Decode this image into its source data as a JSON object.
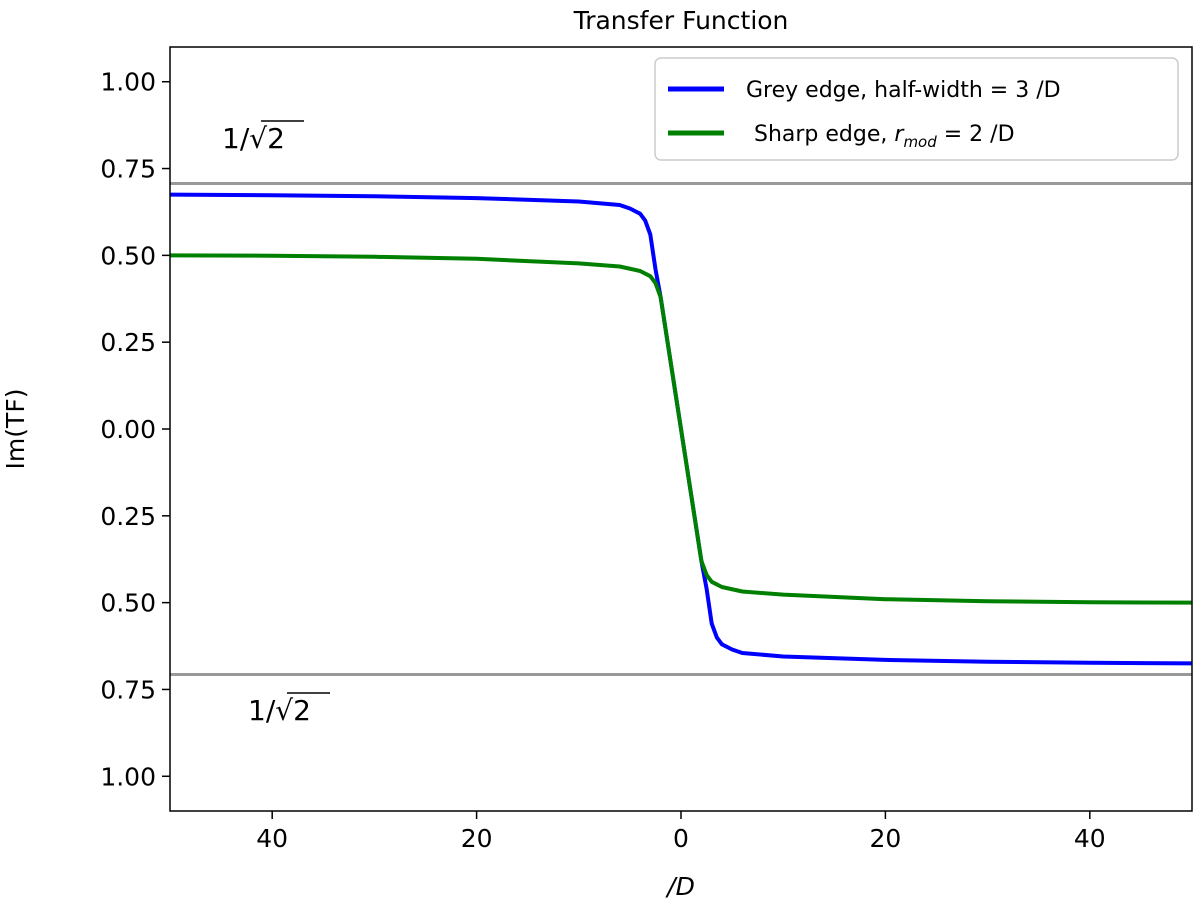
{
  "chart_data": {
    "type": "line",
    "title": "Transfer Function",
    "xlabel": "/D",
    "ylabel": "Im(TF)",
    "xlim": [
      -50,
      50
    ],
    "ylim": [
      -1.1,
      1.1
    ],
    "xticks": [
      -40,
      -20,
      0,
      20,
      40
    ],
    "xtick_labels": [
      "40",
      "20",
      "0",
      "20",
      "40"
    ],
    "yticks": [
      1.0,
      0.75,
      0.5,
      0.25,
      0.0,
      -0.25,
      -0.5,
      -0.75,
      -1.0
    ],
    "ytick_labels": [
      "1.00",
      "0.75",
      "0.50",
      "0.25",
      "0.00",
      "0.25",
      "0.50",
      "0.75",
      "1.00"
    ],
    "grid": false,
    "legend_position": "top-right",
    "reference_lines": [
      {
        "y": 0.7071,
        "label": "1/√2",
        "color": "#999999"
      },
      {
        "y": -0.7071,
        "label": "1/√2",
        "color": "#999999"
      }
    ],
    "series": [
      {
        "name": "Grey edge, half-width = 3  /D",
        "color": "#0000ff",
        "x": [
          -50,
          -40,
          -30,
          -20,
          -10,
          -6,
          -5,
          -4,
          -3.5,
          -3,
          -2.5,
          -2,
          -1,
          0,
          1,
          2,
          2.5,
          3,
          3.5,
          4,
          5,
          6,
          10,
          20,
          30,
          40,
          50
        ],
        "y": [
          0.675,
          0.673,
          0.67,
          0.665,
          0.655,
          0.645,
          0.635,
          0.62,
          0.6,
          0.56,
          0.46,
          0.38,
          0.19,
          0.0,
          -0.19,
          -0.38,
          -0.46,
          -0.56,
          -0.6,
          -0.62,
          -0.635,
          -0.645,
          -0.655,
          -0.665,
          -0.67,
          -0.673,
          -0.675
        ]
      },
      {
        "name": "Sharp edge, r_mod = 2  /D",
        "legend_prefix": "Sharp edge, ",
        "legend_sym": "r",
        "legend_sub": "mod",
        "legend_suffix": " = 2  /D",
        "color": "#008000",
        "x": [
          -50,
          -40,
          -30,
          -20,
          -10,
          -6,
          -4,
          -3,
          -2.5,
          -2,
          -1,
          0,
          1,
          2,
          2.5,
          3,
          4,
          6,
          10,
          20,
          30,
          40,
          50
        ],
        "y": [
          0.5,
          0.499,
          0.496,
          0.49,
          0.477,
          0.468,
          0.455,
          0.44,
          0.42,
          0.38,
          0.19,
          0.0,
          -0.19,
          -0.38,
          -0.42,
          -0.44,
          -0.455,
          -0.468,
          -0.477,
          -0.49,
          -0.496,
          -0.499,
          -0.5
        ]
      }
    ]
  }
}
